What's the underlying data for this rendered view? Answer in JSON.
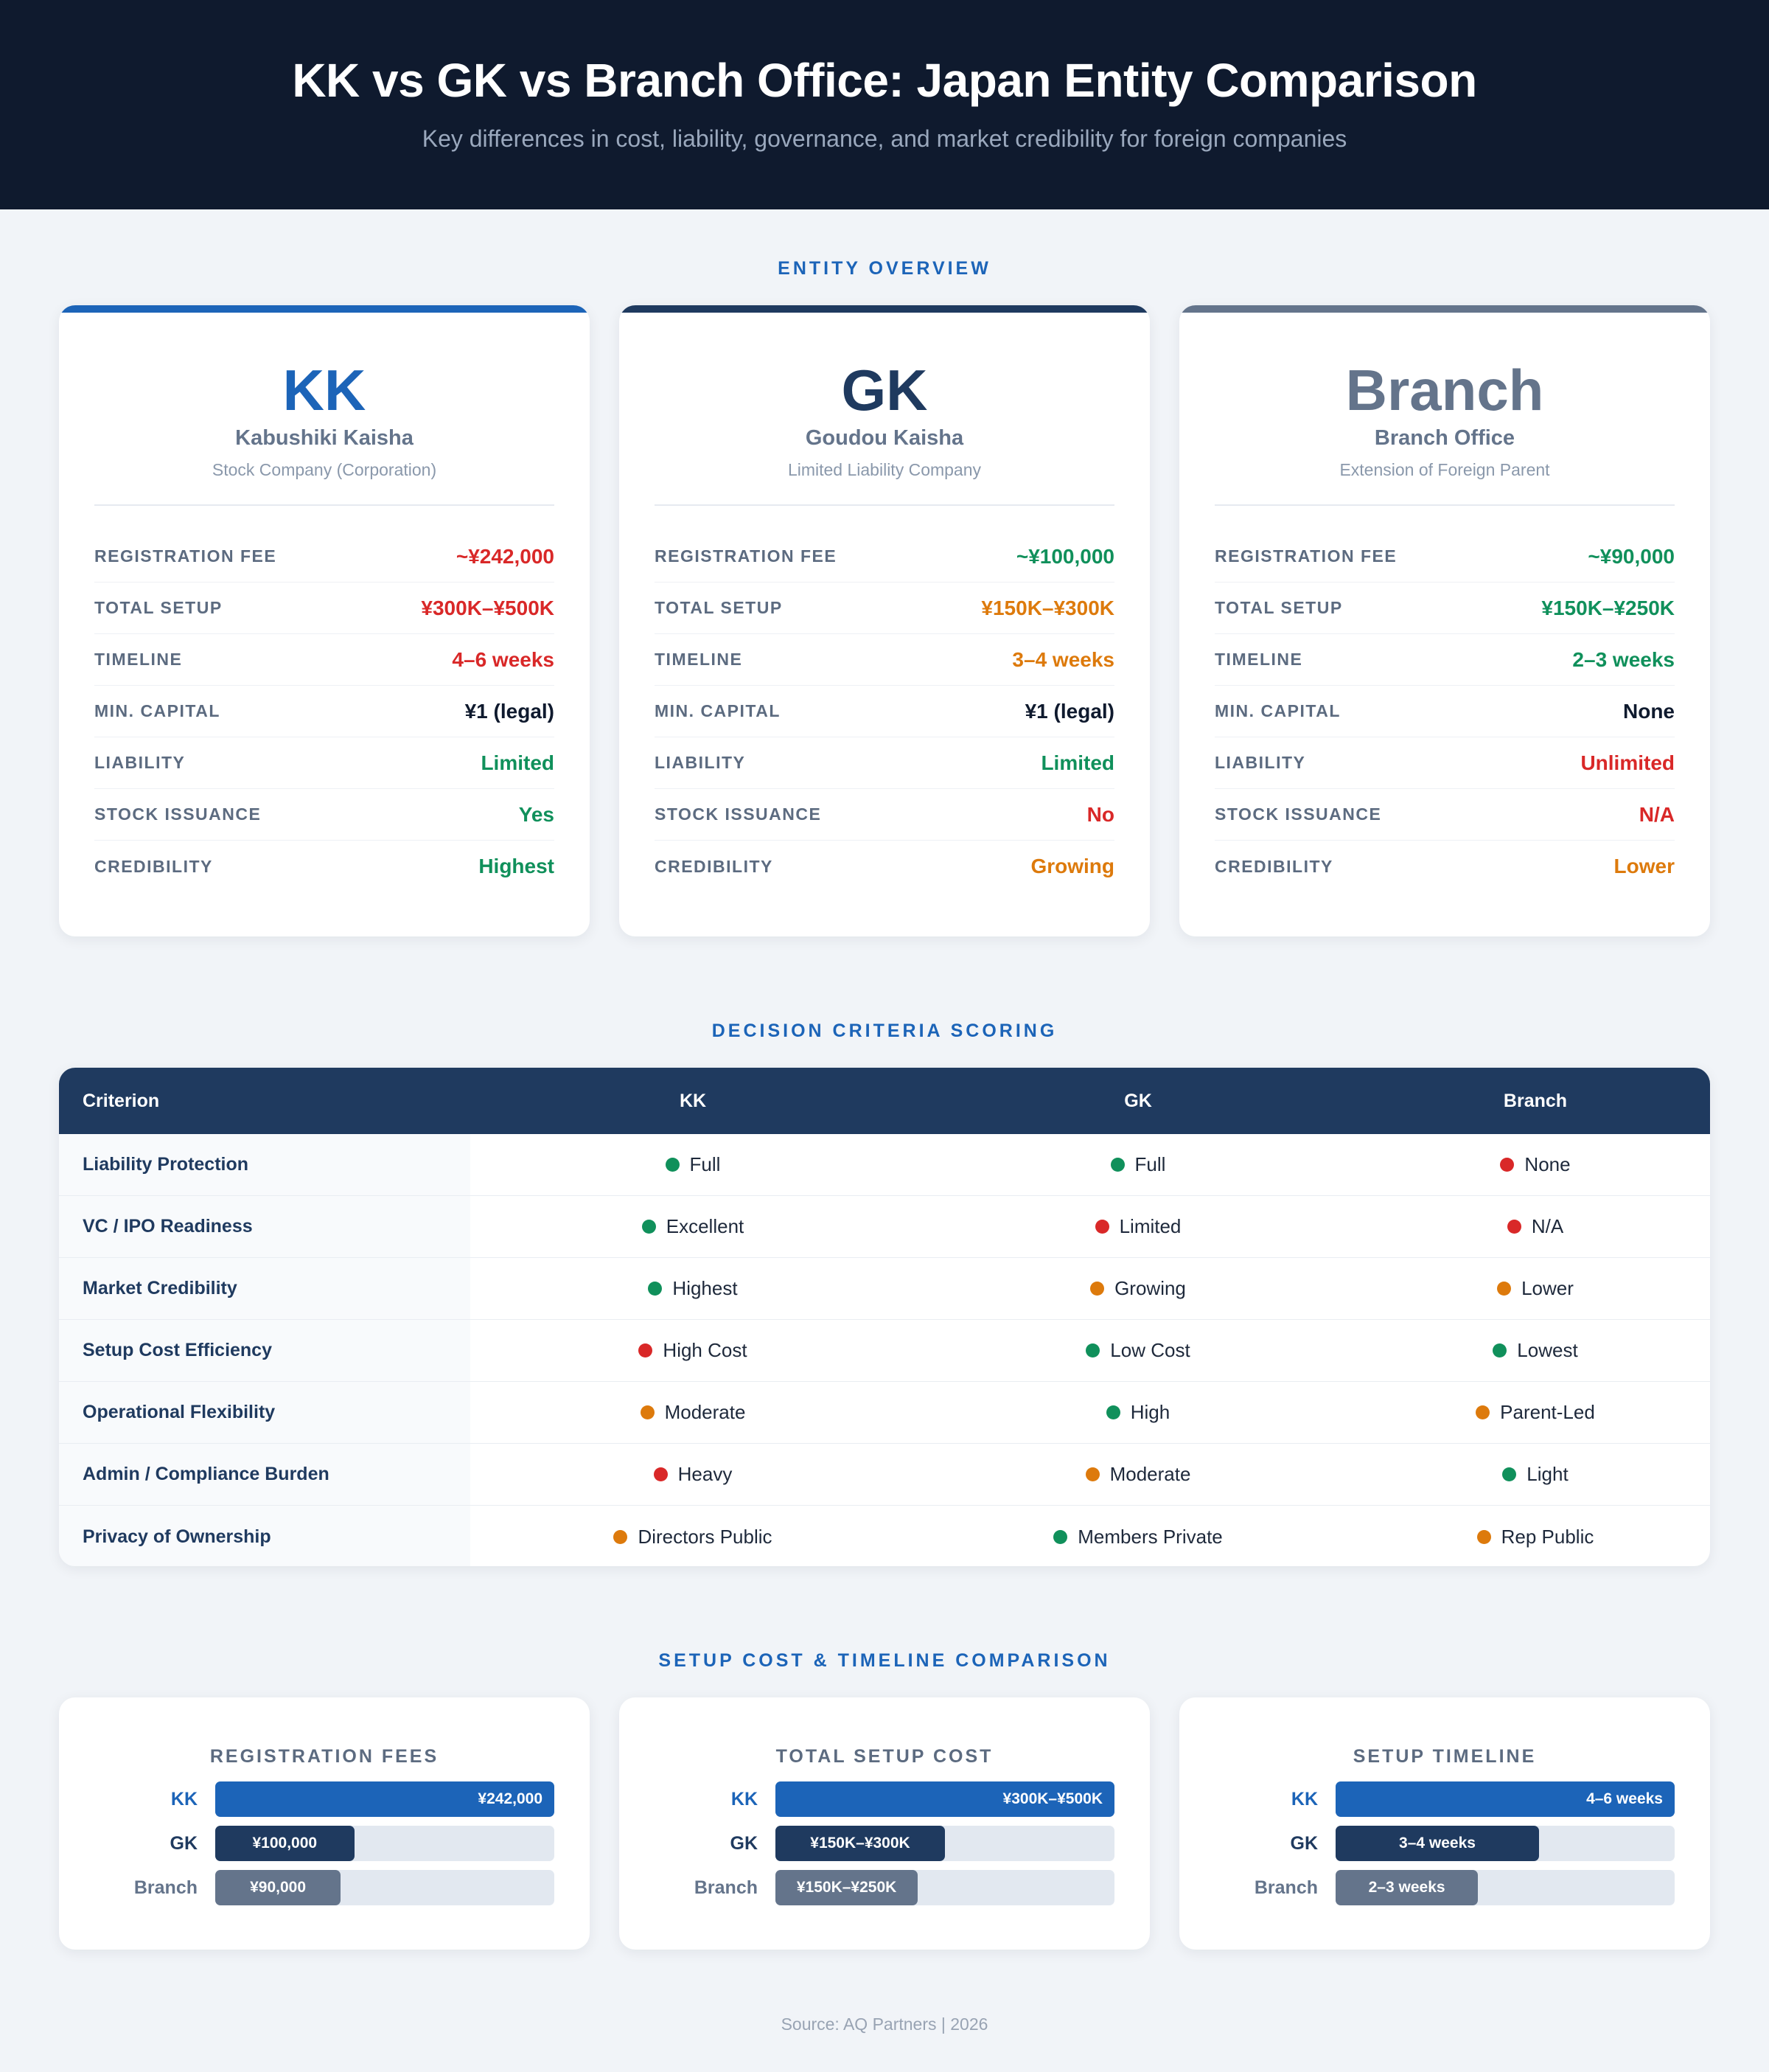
{
  "header": {
    "title": "KK vs GK vs Branch Office: Japan Entity Comparison",
    "subtitle": "Key differences in cost, liability, governance, and market credibility for foreign companies"
  },
  "overview": {
    "section_title": "ENTITY OVERVIEW",
    "row_labels": [
      "REGISTRATION FEE",
      "TOTAL SETUP",
      "TIMELINE",
      "MIN. CAPITAL",
      "LIABILITY",
      "STOCK ISSUANCE",
      "CREDIBILITY"
    ],
    "cards": [
      {
        "abbr": "KK",
        "name": "Kabushiki Kaisha",
        "description": "Stock Company (Corporation)",
        "accent": "#1c64b8",
        "values": [
          "~¥242,000",
          "¥300K–¥500K",
          "4–6 weeks",
          "¥1 (legal)",
          "Limited",
          "Yes",
          "Highest"
        ],
        "value_colors": [
          "red",
          "red",
          "red",
          "black",
          "green",
          "green",
          "green"
        ]
      },
      {
        "abbr": "GK",
        "name": "Goudou Kaisha",
        "description": "Limited Liability Company",
        "accent": "#1f3a5f",
        "values": [
          "~¥100,000",
          "¥150K–¥300K",
          "3–4 weeks",
          "¥1 (legal)",
          "Limited",
          "No",
          "Growing"
        ],
        "value_colors": [
          "green",
          "orange",
          "orange",
          "black",
          "green",
          "red",
          "orange"
        ]
      },
      {
        "abbr": "Branch",
        "name": "Branch Office",
        "description": "Extension of Foreign Parent",
        "accent": "#64748b",
        "values": [
          "~¥90,000",
          "¥150K–¥250K",
          "2–3 weeks",
          "None",
          "Unlimited",
          "N/A",
          "Lower"
        ],
        "value_colors": [
          "green",
          "green",
          "green",
          "black",
          "red",
          "red",
          "orange"
        ]
      }
    ]
  },
  "scoring": {
    "section_title": "DECISION CRITERIA SCORING",
    "headers": [
      "Criterion",
      "KK",
      "GK",
      "Branch"
    ],
    "rows": [
      {
        "criterion": "Liability Protection",
        "kk": {
          "text": "Full",
          "status": "green"
        },
        "gk": {
          "text": "Full",
          "status": "green"
        },
        "branch": {
          "text": "None",
          "status": "red"
        }
      },
      {
        "criterion": "VC / IPO Readiness",
        "kk": {
          "text": "Excellent",
          "status": "green"
        },
        "gk": {
          "text": "Limited",
          "status": "red"
        },
        "branch": {
          "text": "N/A",
          "status": "red"
        }
      },
      {
        "criterion": "Market Credibility",
        "kk": {
          "text": "Highest",
          "status": "green"
        },
        "gk": {
          "text": "Growing",
          "status": "orange"
        },
        "branch": {
          "text": "Lower",
          "status": "orange"
        }
      },
      {
        "criterion": "Setup Cost Efficiency",
        "kk": {
          "text": "High Cost",
          "status": "red"
        },
        "gk": {
          "text": "Low Cost",
          "status": "green"
        },
        "branch": {
          "text": "Lowest",
          "status": "green"
        }
      },
      {
        "criterion": "Operational Flexibility",
        "kk": {
          "text": "Moderate",
          "status": "orange"
        },
        "gk": {
          "text": "High",
          "status": "green"
        },
        "branch": {
          "text": "Parent-Led",
          "status": "orange"
        }
      },
      {
        "criterion": "Admin / Compliance Burden",
        "kk": {
          "text": "Heavy",
          "status": "red"
        },
        "gk": {
          "text": "Moderate",
          "status": "orange"
        },
        "branch": {
          "text": "Light",
          "status": "green"
        }
      },
      {
        "criterion": "Privacy of Ownership",
        "kk": {
          "text": "Directors Public",
          "status": "orange"
        },
        "gk": {
          "text": "Members Private",
          "status": "green"
        },
        "branch": {
          "text": "Rep Public",
          "status": "orange"
        }
      }
    ]
  },
  "costs": {
    "section_title": "SETUP COST & TIMELINE COMPARISON",
    "entity_labels": [
      "KK",
      "GK",
      "Branch"
    ],
    "charts": [
      {
        "title": "REGISTRATION FEES",
        "labels": [
          "¥242,000",
          "¥100,000",
          "¥90,000"
        ],
        "fill_fraction": [
          1.0,
          0.41,
          0.37
        ]
      },
      {
        "title": "TOTAL SETUP COST",
        "labels": [
          "¥300K–¥500K",
          "¥150K–¥300K",
          "¥150K–¥250K"
        ],
        "fill_fraction": [
          1.0,
          0.5,
          0.42
        ]
      },
      {
        "title": "SETUP TIMELINE",
        "labels": [
          "4–6 weeks",
          "3–4 weeks",
          "2–3 weeks"
        ],
        "fill_fraction": [
          1.0,
          0.6,
          0.42
        ]
      }
    ]
  },
  "colors": {
    "green": "#10905b",
    "red": "#d92828",
    "orange": "#dd7a0c",
    "kk": "#1c64b8",
    "gk": "#1f3a5f",
    "branch": "#64748b"
  },
  "footer": {
    "source": "Source: AQ Partners | 2026"
  }
}
